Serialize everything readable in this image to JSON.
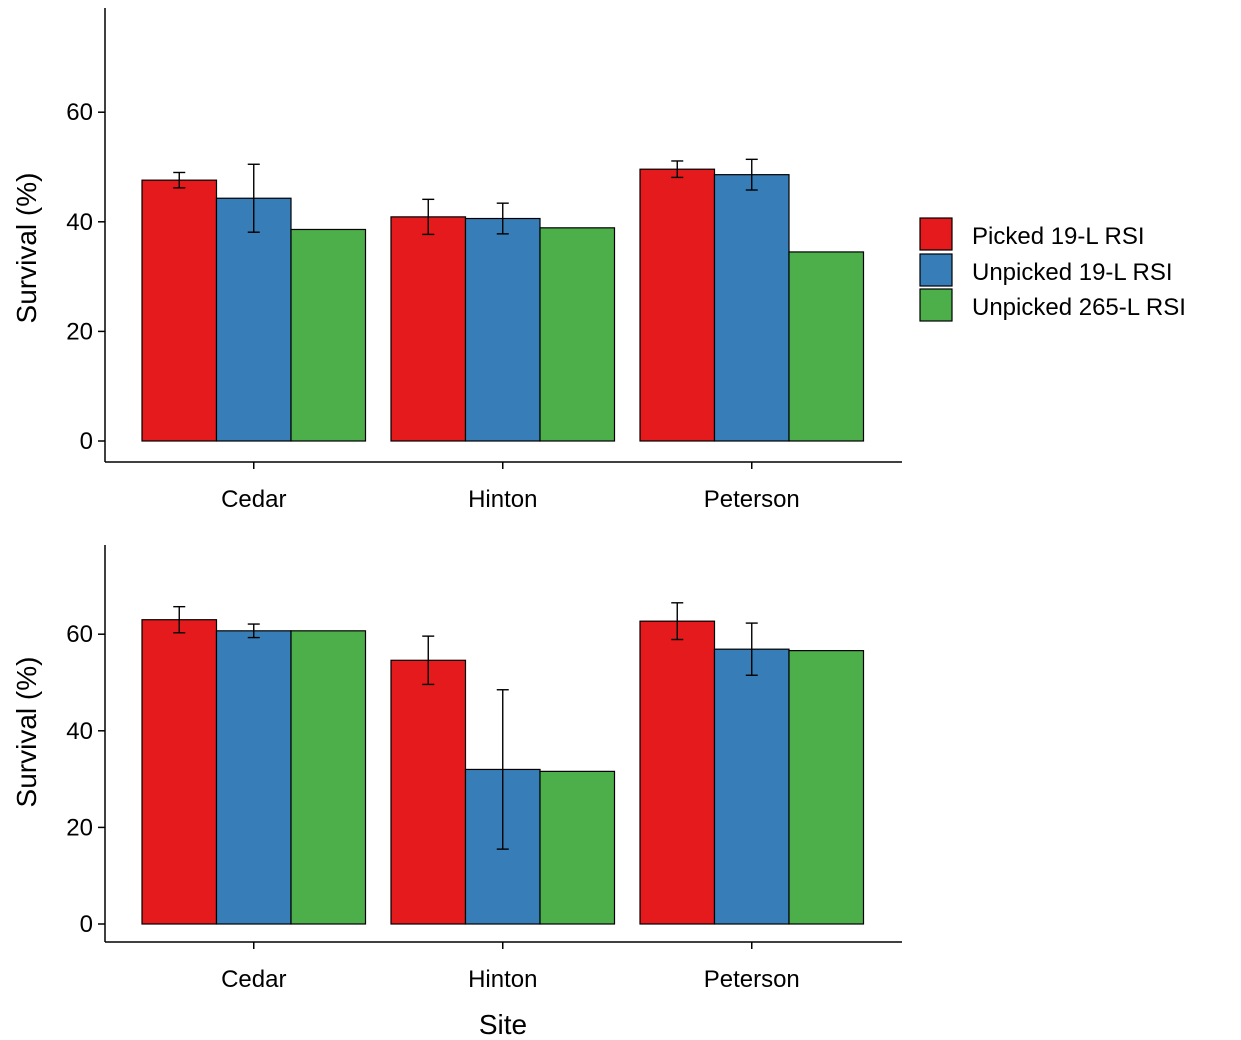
{
  "chart_data": [
    {
      "type": "bar",
      "categories": [
        "Cedar",
        "Hinton",
        "Peterson"
      ],
      "series": [
        {
          "name": "Picked 19-L RSI",
          "values": [
            47.6,
            40.9,
            49.6
          ],
          "errors": [
            1.4,
            3.2,
            1.5
          ],
          "color": "#e41a1c"
        },
        {
          "name": "Unpicked 19-L RSI",
          "values": [
            44.3,
            40.6,
            48.6
          ],
          "errors": [
            6.2,
            2.8,
            2.8
          ],
          "color": "#377eb8"
        },
        {
          "name": "Unpicked 265-L RSI",
          "values": [
            38.6,
            38.9,
            34.5
          ],
          "errors": null,
          "color": "#4daf4a"
        }
      ],
      "xlabel": "",
      "ylabel": "Survival (%)",
      "ylim": [
        -3.6,
        78
      ],
      "yticks": [
        0,
        20,
        40,
        60
      ]
    },
    {
      "type": "bar",
      "categories": [
        "Cedar",
        "Hinton",
        "Peterson"
      ],
      "series": [
        {
          "name": "Picked 19-L RSI",
          "values": [
            63.0,
            54.6,
            62.7
          ],
          "errors": [
            2.7,
            5.0,
            3.8
          ],
          "color": "#e41a1c"
        },
        {
          "name": "Unpicked 19-L RSI",
          "values": [
            60.7,
            32.0,
            56.9
          ],
          "errors": [
            1.4,
            16.5,
            5.4
          ],
          "color": "#377eb8"
        },
        {
          "name": "Unpicked 265-L RSI",
          "values": [
            60.7,
            31.6,
            56.6
          ],
          "errors": null,
          "color": "#4daf4a"
        }
      ],
      "xlabel": "Site",
      "ylabel": "Survival (%)",
      "ylim": [
        -3.6,
        78
      ],
      "yticks": [
        0,
        20,
        40,
        60
      ]
    }
  ],
  "legend": {
    "placement": "right",
    "items": [
      {
        "label": "Picked 19-L RSI",
        "color": "#e41a1c"
      },
      {
        "label": "Unpicked 19-L RSI",
        "color": "#377eb8"
      },
      {
        "label": "Unpicked 265-L RSI",
        "color": "#4daf4a"
      }
    ]
  }
}
